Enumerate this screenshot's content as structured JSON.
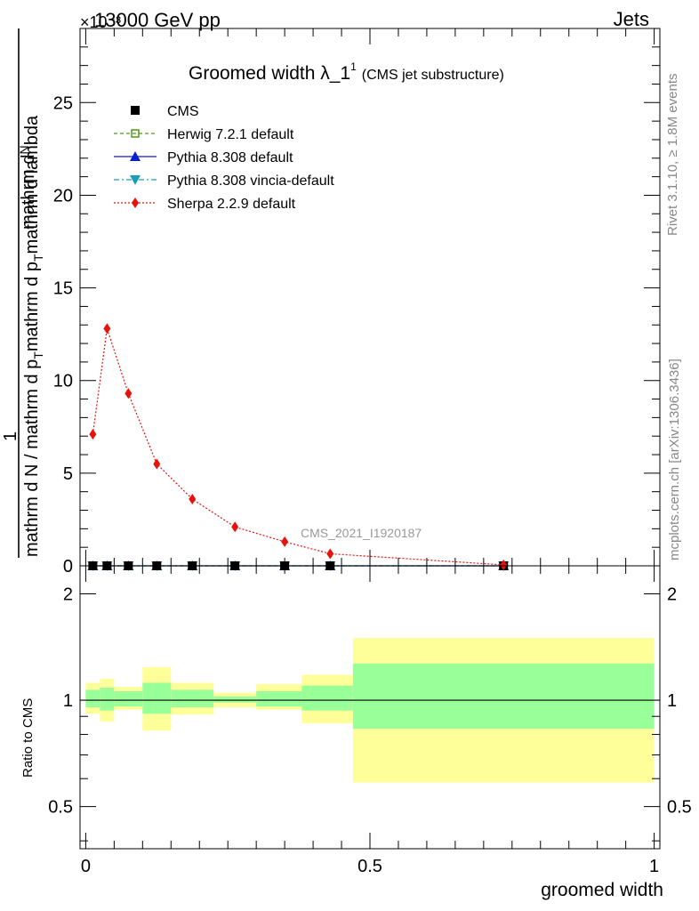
{
  "header": {
    "left": "13000 GeV pp",
    "right": "Jets",
    "exponent_label": "×10⁻³"
  },
  "side_labels": {
    "rivet": "Rivet 3.1.10, ≥ 1.8M events",
    "site": "mcplots.cern.ch [arXiv:1306.3436]"
  },
  "watermark": "CMS_2021_I1920187",
  "chart_data": [
    {
      "type": "line",
      "title": "Groomed width λ_1¹ (CMS jet substructure)",
      "title_main": "Groomed width λ_1",
      "title_sup": "1",
      "title_sub": "(CMS jet substructure)",
      "ylabel_top": "1",
      "ylabel_numerator": "mathrm dN",
      "ylabel_denominator": "mathrm d N / mathrm d pT mathrm d pT mathrm d lambda",
      "ylabel_parts": {
        "num_a": "mathrm d",
        "num_b": "N",
        "den_a": "mathrm d N / mathrm d p",
        "den_sub1": "T",
        "den_b": "mathrm d p",
        "den_sub2": "T",
        "den_c": "mathrm d lambda"
      },
      "ylim": [
        0,
        29000
      ],
      "yscale_factor": 0.001,
      "yticks": [
        0,
        5000,
        10000,
        15000,
        20000,
        25000
      ],
      "ytick_labels": [
        "0",
        "5",
        "10",
        "15",
        "20",
        "25"
      ],
      "xlim": [
        -0.01,
        1.01
      ],
      "legend_position": "top-left",
      "series": [
        {
          "name": "CMS",
          "color": "#000000",
          "marker": "square-filled",
          "x": [
            0.0125,
            0.0375,
            0.075,
            0.125,
            0.1875,
            0.2625,
            0.35,
            0.43,
            0.735
          ],
          "values": [
            0,
            0,
            0,
            0,
            0,
            0,
            0,
            0,
            0
          ]
        },
        {
          "name": "Herwig 7.2.1 default",
          "color": "#4d9a1a",
          "marker": "square-open",
          "line": "dashed",
          "x": [
            0.0125,
            0.0375,
            0.075,
            0.125,
            0.1875,
            0.2625,
            0.35,
            0.43,
            0.735
          ],
          "values": [
            0,
            0,
            0,
            0,
            0,
            0,
            0,
            0,
            0
          ]
        },
        {
          "name": "Pythia 8.308 default",
          "color": "#0c1fd0",
          "marker": "triangle-up",
          "line": "solid",
          "x": [
            0.0125,
            0.0375,
            0.075,
            0.125,
            0.1875,
            0.2625,
            0.35,
            0.43,
            0.735
          ],
          "values": [
            0,
            0,
            0,
            0,
            0,
            0,
            0,
            0,
            0
          ]
        },
        {
          "name": "Pythia 8.308 vincia-default",
          "color": "#1a9fb8",
          "marker": "triangle-down",
          "line": "dashdot",
          "x": [
            0.0125,
            0.0375,
            0.075,
            0.125,
            0.1875,
            0.2625,
            0.35,
            0.43,
            0.735
          ],
          "values": [
            0,
            0,
            0,
            0,
            0,
            0,
            0,
            0,
            0
          ]
        },
        {
          "name": "Sherpa 2.2.9 default",
          "color": "#e8120c",
          "marker": "diamond",
          "line": "dotted",
          "x": [
            0.0125,
            0.0375,
            0.075,
            0.125,
            0.1875,
            0.2625,
            0.35,
            0.43,
            0.735
          ],
          "values": [
            7100,
            12800,
            9300,
            5500,
            3600,
            2100,
            1300,
            650,
            50
          ]
        }
      ]
    },
    {
      "type": "area",
      "ylabel": "Ratio to CMS",
      "xlabel": "groomed width",
      "xlim": [
        -0.01,
        1.01
      ],
      "ylim": [
        0.38,
        2.4
      ],
      "yscale": "log",
      "yticks": [
        0.5,
        1,
        2
      ],
      "ytick_labels": [
        "0.5",
        "1",
        "2"
      ],
      "xticks": [
        0,
        0.5,
        1
      ],
      "xtick_labels": [
        "0",
        "0.5",
        "1"
      ],
      "reference_line": 1,
      "bins": [
        {
          "lo": 0.0,
          "hi": 0.025,
          "inner": [
            0.955,
            1.07
          ],
          "outer": [
            0.915,
            1.12
          ]
        },
        {
          "lo": 0.025,
          "hi": 0.05,
          "inner": [
            0.935,
            1.085
          ],
          "outer": [
            0.87,
            1.15
          ]
        },
        {
          "lo": 0.05,
          "hi": 0.1,
          "inner": [
            0.96,
            1.06
          ],
          "outer": [
            0.94,
            1.09
          ]
        },
        {
          "lo": 0.1,
          "hi": 0.15,
          "inner": [
            0.915,
            1.12
          ],
          "outer": [
            0.82,
            1.24
          ]
        },
        {
          "lo": 0.15,
          "hi": 0.225,
          "inner": [
            0.955,
            1.07
          ],
          "outer": [
            0.91,
            1.12
          ]
        },
        {
          "lo": 0.225,
          "hi": 0.3,
          "inner": [
            0.985,
            1.025
          ],
          "outer": [
            0.955,
            1.05
          ]
        },
        {
          "lo": 0.3,
          "hi": 0.38,
          "inner": [
            0.96,
            1.06
          ],
          "outer": [
            0.94,
            1.11
          ]
        },
        {
          "lo": 0.38,
          "hi": 0.47,
          "inner": [
            0.935,
            1.1
          ],
          "outer": [
            0.86,
            1.18
          ]
        },
        {
          "lo": 0.47,
          "hi": 1.0,
          "inner": [
            0.83,
            1.27
          ],
          "outer": [
            0.585,
            1.5
          ]
        }
      ],
      "colors": {
        "inner": "#99ff99",
        "outer": "#ffff99"
      }
    }
  ]
}
